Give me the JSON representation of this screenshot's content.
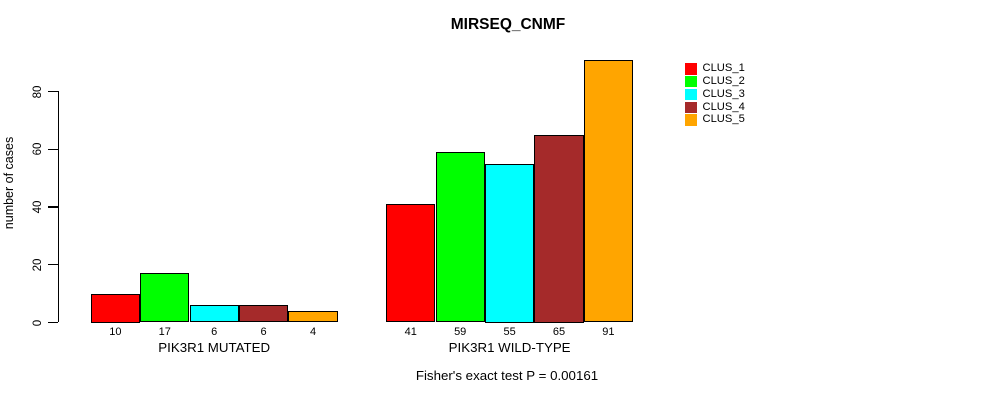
{
  "chart_data": {
    "type": "bar",
    "title": "MIRSEQ_CNMF",
    "ylabel": "number of cases",
    "xlabel": "",
    "ylim": [
      0,
      93
    ],
    "yticks": [
      0,
      20,
      40,
      60,
      80
    ],
    "grid": false,
    "legend_position": "right-inside-top",
    "categories": [
      "CLUS_1",
      "CLUS_2",
      "CLUS_3",
      "CLUS_4",
      "CLUS_5"
    ],
    "colors": [
      "#ff0000",
      "#00ff00",
      "#00ffff",
      "#a52a2a",
      "#ffa500"
    ],
    "groups": [
      {
        "label": "PIK3R1 MUTATED",
        "values": [
          10,
          17,
          6,
          6,
          4
        ]
      },
      {
        "label": "PIK3R1 WILD-TYPE",
        "values": [
          41,
          59,
          55,
          65,
          91
        ]
      }
    ],
    "legend": [
      {
        "label": "CLUS_1",
        "color": "#ff0000"
      },
      {
        "label": "CLUS_2",
        "color": "#00ff00"
      },
      {
        "label": "CLUS_3",
        "color": "#00ffff"
      },
      {
        "label": "CLUS_4",
        "color": "#a52a2a"
      },
      {
        "label": "CLUS_5",
        "color": "#ffa500"
      }
    ],
    "annotation": "Fisher's exact test P = 0.00161"
  }
}
